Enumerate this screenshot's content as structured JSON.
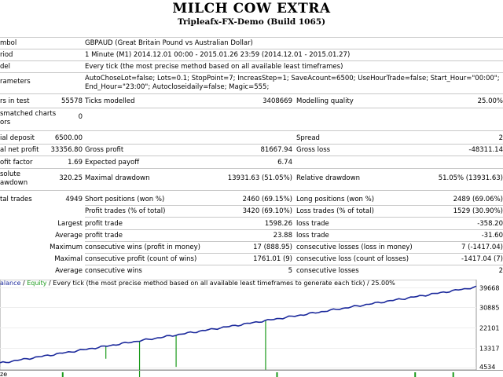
{
  "report": {
    "title": "MILCH COW EXTRA",
    "subtitle": "Tripleafx-FX-Demo (Build 1065)"
  },
  "info": {
    "symbol_label": "mbol",
    "symbol_value": "GBPAUD (Great Britain Pound vs Australian Dollar)",
    "period_label": "riod",
    "period_value": "1 Minute (M1) 2014.12.01 00:00 - 2015.01.26 23:59 (2014.12.01 - 2015.01.27)",
    "model_label": "del",
    "model_value": "Every tick (the most precise method based on all available least timeframes)",
    "params_label": "rameters",
    "params_line1": "AutoChoseLot=false; Lots=0.1; StopPoint=7; IncreasStep=1; SaveAcount=6500; UseHourTrade=false; Start_Hour=\"00:00\";",
    "params_line2": "End_Hour=\"23:00\"; Autocloseidaily=false; Magic=555;"
  },
  "stats": {
    "bars_label": "rs in test",
    "bars_value": "55578",
    "ticks_label": "Ticks modelled",
    "ticks_value": "3408669",
    "quality_label": "Modelling quality",
    "quality_value": "25.00%",
    "mismatch_label1": "smatched charts",
    "mismatch_label2": "ors",
    "mismatch_value": "0",
    "deposit_label": "ial deposit",
    "deposit_value": "6500.00",
    "spread_label": "Spread",
    "spread_value": "2",
    "netprofit_label": "al net profit",
    "netprofit_value": "33356.80",
    "grossprofit_label": "Gross profit",
    "grossprofit_value": "81667.94",
    "grossloss_label": "Gross loss",
    "grossloss_value": "-48311.14",
    "pf_label": "ofit factor",
    "pf_value": "1.69",
    "payoff_label": "Expected payoff",
    "payoff_value": "6.74",
    "absdd_label1": "solute",
    "absdd_label2": "awdown",
    "absdd_value": "320.25",
    "maxdd_label": "Maximal drawdown",
    "maxdd_value": "13931.63 (51.05%)",
    "reldd_label": "Relative drawdown",
    "reldd_value": "51.05% (13931.63)",
    "trades_label": "tal trades",
    "trades_value": "4949",
    "short_label": "Short positions (won %)",
    "short_value": "2460 (69.15%)",
    "long_label": "Long positions (won %)",
    "long_value": "2489 (69.06%)",
    "profit_trades_label": "Profit trades (% of total)",
    "profit_trades_value": "3420 (69.10%)",
    "loss_trades_label": "Loss trades (% of total)",
    "loss_trades_value": "1529 (30.90%)",
    "largest_label": "Largest",
    "largest_profit_label": "profit trade",
    "largest_profit_value": "1598.26",
    "largest_loss_label": "loss trade",
    "largest_loss_value": "-358.20",
    "average_label": "Average",
    "average_profit_label": "profit trade",
    "average_profit_value": "23.88",
    "average_loss_label": "loss trade",
    "average_loss_value": "-31.60",
    "max_label": "Maximum",
    "cwins_money_label": "consecutive wins (profit in money)",
    "cwins_money_value": "17 (888.95)",
    "closs_money_label": "consecutive losses (loss in money)",
    "closs_money_value": "7 (-1417.04)",
    "maximal_label": "Maximal",
    "cprofit_count_label": "consecutive profit (count of wins)",
    "cprofit_count_value": "1761.01 (9)",
    "closs_count_label": "consecutive loss (count of losses)",
    "closs_count_value": "-1417.04 (7)",
    "avg_label": "Average",
    "avg_cwins_label": "consecutive wins",
    "avg_cwins_value": "5",
    "avg_closs_label": "consecutive losses",
    "avg_closs_value": "2"
  },
  "chart_legend": {
    "balance": "alance",
    "slash": " / ",
    "equity": "Equity",
    "rest": " / Every tick (the most precise method based on all available least timeframes to generate each tick) / 25.00%"
  },
  "bottom_label": "ze",
  "chart_data": {
    "type": "line",
    "y_ticks": [
      "39668",
      "30885",
      "22101",
      "13317",
      "4534"
    ],
    "ylim": [
      4534,
      39668
    ],
    "series": [
      {
        "name": "Balance",
        "color": "#1c2a9c",
        "x": [
          0,
          4949
        ],
        "y": [
          6500,
          39856
        ]
      },
      {
        "name": "Equity",
        "color": "#1a9a1a"
      }
    ],
    "equity_dips": [
      [
        1100,
        5500
      ],
      [
        1450,
        18000
      ],
      [
        1830,
        14000
      ],
      [
        2760,
        21500
      ]
    ],
    "volume_marks": [
      0.13,
      0.58,
      0.87,
      0.95
    ]
  }
}
